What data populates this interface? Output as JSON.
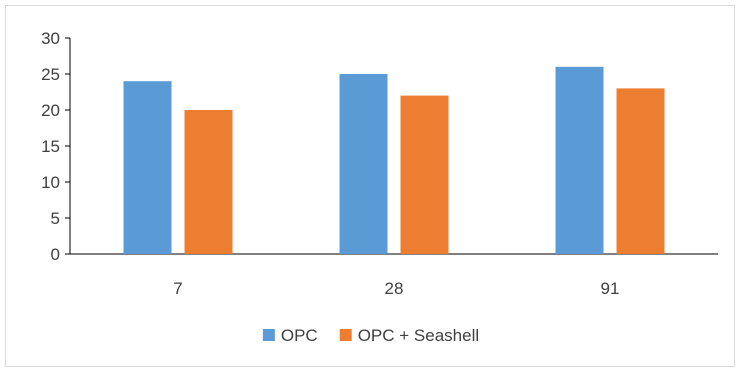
{
  "chart_data": {
    "type": "bar",
    "categories": [
      "7",
      "28",
      "91"
    ],
    "series": [
      {
        "name": "OPC",
        "values": [
          24,
          25,
          26
        ],
        "color": "#5b9bd5"
      },
      {
        "name": "OPC + Seashell",
        "values": [
          20,
          22,
          23
        ],
        "color": "#ed7d31"
      }
    ],
    "ylim": [
      0,
      30
    ],
    "yticks": [
      0,
      5,
      10,
      15,
      20,
      25,
      30
    ],
    "grid": false,
    "legend_position": "bottom",
    "title": "",
    "xlabel": "",
    "ylabel": ""
  }
}
